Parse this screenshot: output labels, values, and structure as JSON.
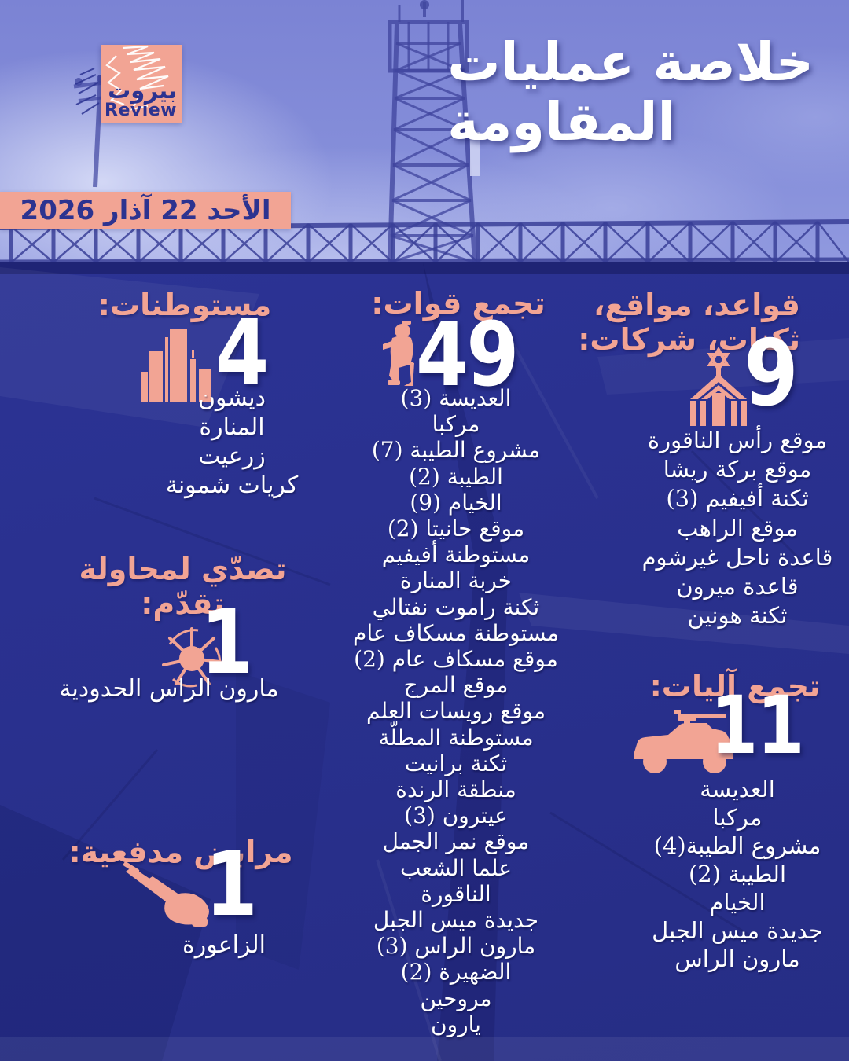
{
  "header": {
    "title_line1": "خلاصة عمليات",
    "title_line2": "المقاومة",
    "date": "الأحد 22 آذار 2026",
    "logo_arabic": "بيروت",
    "logo_english": "Review"
  },
  "colors": {
    "salmon": "#f2a494",
    "navy_background": "#2b3394",
    "photo_blue": "#8089d8",
    "text_white": "#ffffff",
    "logo_text_navy": "#2c3390"
  },
  "sections": {
    "bases": {
      "title_line1": "قواعد، مواقع،",
      "title_line2": "ثكنات، شركات:",
      "count": "9",
      "icon": "base-star-building-icon",
      "items": [
        "موقع رأس الناقورة",
        "موقع بركة ريشا",
        "ثكنة أفيفيم (3)",
        "موقع الراهب",
        "قاعدة ناحل غيرشوم",
        "قاعدة ميرون",
        "ثكنة هونين"
      ]
    },
    "troops": {
      "title": "تجمع قوات:",
      "count": "49",
      "icon": "soldier-icon",
      "items": [
        "العديسة (3)",
        "مركبا",
        "مشروع الطيبة (7)",
        "الطيبة (2)",
        "الخيام (9)",
        "موقع حانيتا (2)",
        "مستوطنة أفيفيم",
        "خربة المنارة",
        "ثكنة راموت نفتالي",
        "مستوطنة مسكاف عام",
        "موقع مسكاف عام (2)",
        "موقع المرج",
        "موقع رويسات العلم",
        "مستوطنة المطلّة",
        "ثكنة برانيت",
        "منطقة الرندة",
        "عيترون (3)",
        "موقع نمر الجمل",
        "علما الشعب",
        "الناقورة",
        "جديدة ميس الجبل",
        "مارون الراس (3)",
        "الضهيرة (2)",
        "مروحين",
        "يارون"
      ]
    },
    "settlements": {
      "title": "مستوطنات:",
      "count": "4",
      "icon": "buildings-icon",
      "items": [
        "ديشون",
        "المنارة",
        "زرعيت",
        "كريات شمونة"
      ]
    },
    "advance": {
      "title_line1": "تصدّي لمحاولة",
      "title_line2": "تقدّم:",
      "count": "1",
      "icon": "explosion-icon",
      "items": [
        "مارون الراس الحدودية"
      ]
    },
    "vehicles": {
      "title": "تجمع آليات:",
      "count": "11",
      "icon": "armored-vehicle-icon",
      "items": [
        "العديسة",
        "مركبا",
        "مشروع الطيبة(4)",
        "الطيبة (2)",
        "الخيام",
        "جديدة ميس الجبل",
        "مارون الراس"
      ]
    },
    "artillery": {
      "title": "مرابض مدفعية:",
      "count": "1",
      "icon": "artillery-icon",
      "items": [
        "الزاعورة"
      ]
    }
  }
}
